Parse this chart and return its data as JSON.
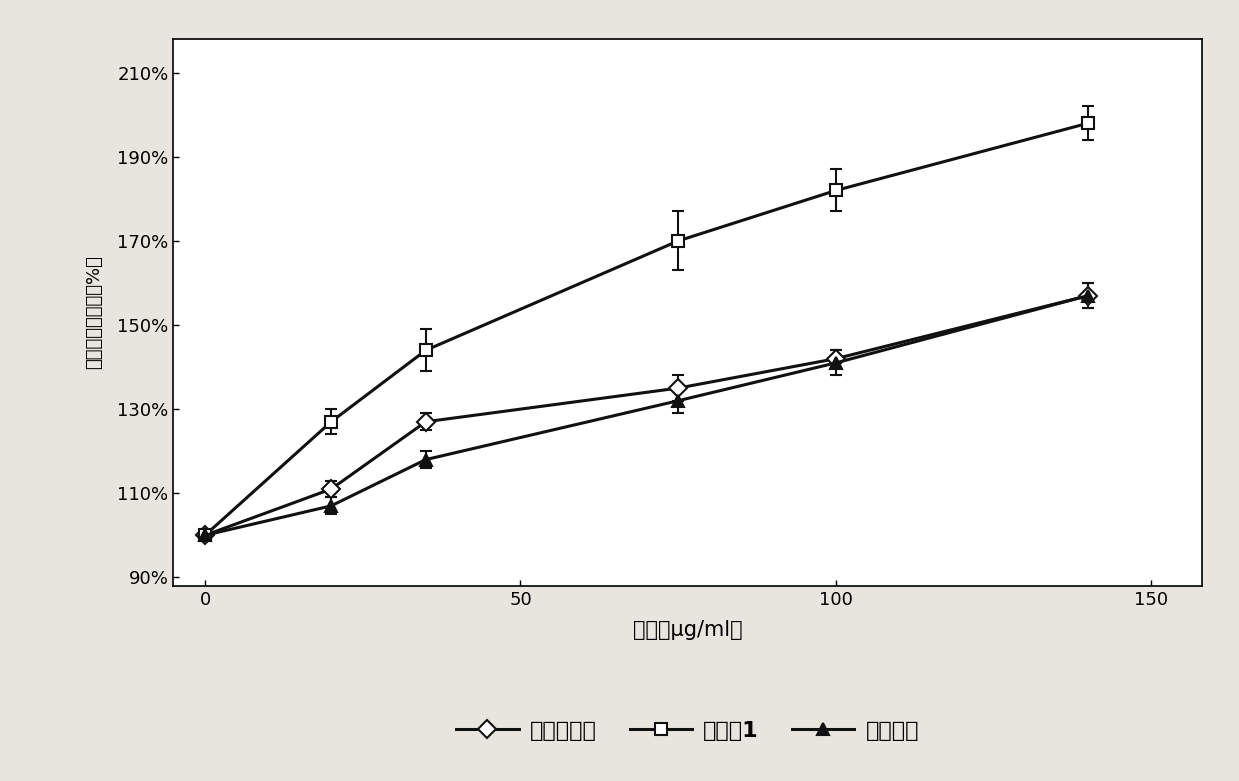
{
  "title": "",
  "xlabel": "浓度（μg/ml）",
  "ylabel": "延长时间百分比（%）",
  "series": [
    {
      "label": "市售注射剂",
      "x": [
        0,
        20,
        35,
        75,
        100,
        140
      ],
      "y": [
        100,
        111,
        127,
        135,
        142,
        157
      ],
      "yerr": [
        1,
        2,
        2,
        3,
        2,
        3
      ],
      "color": "#111111",
      "marker": "D",
      "marker_facecolor": "white",
      "linewidth": 2.2,
      "markersize": 9
    },
    {
      "label": "实施例1",
      "x": [
        0,
        20,
        35,
        75,
        100,
        140
      ],
      "y": [
        100,
        127,
        144,
        170,
        182,
        198
      ],
      "yerr": [
        1,
        3,
        5,
        7,
        5,
        4
      ],
      "color": "#111111",
      "marker": "s",
      "marker_facecolor": "white",
      "linewidth": 2.2,
      "markersize": 9
    },
    {
      "label": "普通胶束",
      "x": [
        0,
        20,
        35,
        75,
        100,
        140
      ],
      "y": [
        100,
        107,
        118,
        132,
        141,
        157
      ],
      "yerr": [
        1,
        2,
        2,
        3,
        3,
        3
      ],
      "color": "#111111",
      "marker": "^",
      "marker_facecolor": "#111111",
      "linewidth": 2.2,
      "markersize": 9
    }
  ],
  "xlim": [
    -5,
    158
  ],
  "ylim": [
    88,
    218
  ],
  "yticks": [
    90,
    110,
    130,
    150,
    170,
    190,
    210
  ],
  "ytick_labels": [
    "90%",
    "110%",
    "130%",
    "150%",
    "170%",
    "190%",
    "210%"
  ],
  "xticks": [
    0,
    50,
    100,
    150
  ],
  "plot_bg_color": "#ffffff",
  "outer_bg_color": "#e8e4de",
  "legend_fontsize": 16,
  "tick_fontsize": 13,
  "xlabel_fontsize": 15,
  "ylabel_fontsize": 13,
  "figsize": [
    12.39,
    7.81
  ],
  "dpi": 100
}
